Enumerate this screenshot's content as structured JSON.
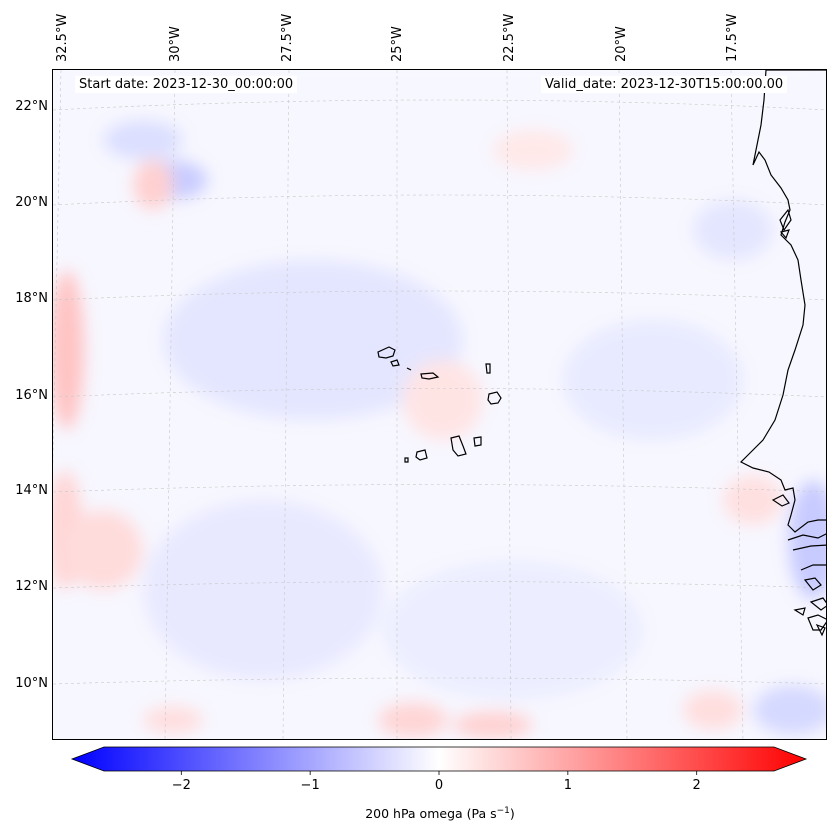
{
  "map": {
    "start_date": "Start date: 2023-12-30_00:00:00",
    "valid_date": "Valid_date: 2023-12-30T15:00:00.00",
    "lon_labels": [
      "32.5°W",
      "30°W",
      "27.5°W",
      "25°W",
      "22.5°W",
      "20°W",
      "17.5°W"
    ],
    "lat_labels": [
      "22°N",
      "20°N",
      "18°N",
      "16°N",
      "14°N",
      "12°N",
      "10°N"
    ],
    "field": "200 hPa omega",
    "region": "Cape Verde islands and West African coast (Senegal, Mauritania, Gambia, Guinea-Bissau)"
  },
  "colorbar": {
    "label_text": "200 hPa omega (Pa s",
    "label_exp": "−1",
    "label_close": ")",
    "min": -2.6,
    "max": 2.6,
    "ticks": [
      {
        "value": -2,
        "label": "−2"
      },
      {
        "value": -1,
        "label": "−1"
      },
      {
        "value": 0,
        "label": "0"
      },
      {
        "value": 1,
        "label": "1"
      },
      {
        "value": 2,
        "label": "2"
      }
    ],
    "colormap": "bwr",
    "color_low": "#0000ff",
    "color_mid": "#ffffff",
    "color_high": "#ff0000"
  }
}
